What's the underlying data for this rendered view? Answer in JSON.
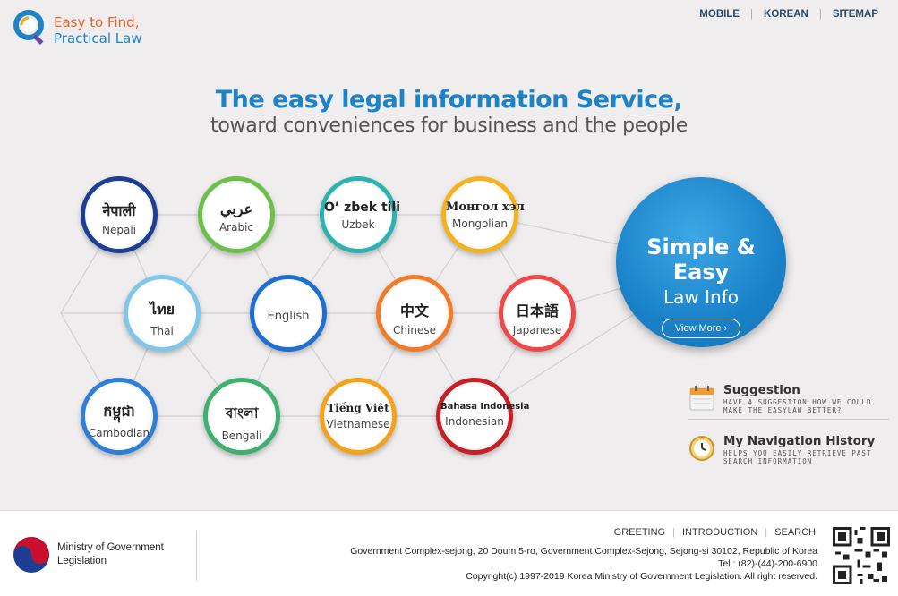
{
  "header": {
    "logo": {
      "line1": "Easy to Find,",
      "line2": "Practical Law"
    },
    "nav": [
      "MOBILE",
      "KOREAN",
      "SITEMAP"
    ]
  },
  "hero": {
    "title": "The  easy legal information Service,",
    "subtitle": "toward conveniences for business and the people"
  },
  "languages": [
    {
      "native": "नेपाली",
      "english": "Nepali",
      "color": "#1c3f95"
    },
    {
      "native": "عربي",
      "english": "Arabic",
      "color": "#6cc04a"
    },
    {
      "native": "O’ zbek  tili",
      "english": "Uzbek",
      "color": "#2bb3b1"
    },
    {
      "native": "Монгол  хэл",
      "english": "Mongolian",
      "color": "#f5b21d"
    },
    {
      "native": "ไทย",
      "english": "Thai",
      "color": "#7fc6ea"
    },
    {
      "native": "",
      "english": "English",
      "color": "#1e6fd0"
    },
    {
      "native": "中文",
      "english": "Chinese",
      "color": "#f07b2a"
    },
    {
      "native": "日本語",
      "english": "Japanese",
      "color": "#ee4848"
    },
    {
      "native": "កម្ពុជា",
      "english": "Cambodian",
      "color": "#2d7fd8"
    },
    {
      "native": "বাংলা",
      "english": "Bengali",
      "color": "#3fb06f"
    },
    {
      "native": "Tiếng Việt",
      "english": "Vietnamese",
      "color": "#f3a21c"
    },
    {
      "native": "Bahasa Indonesia",
      "english": "Indonesian",
      "color": "#c52026"
    }
  ],
  "feature": {
    "line1": "Simple & Easy",
    "line2": "Law Info",
    "button": "View More"
  },
  "side": {
    "suggestion": {
      "title": "Suggestion",
      "desc": "Have a suggestion how we could make the easylaw better?"
    },
    "history": {
      "title": "My Navigation History",
      "desc": "Helps you easily retrieve past search information"
    }
  },
  "footer": {
    "ministry": {
      "line1": "Ministry of Government",
      "line2": "Legislation"
    },
    "links": [
      "GREETING",
      "INTRODUCTION",
      "SEARCH"
    ],
    "address": "Government Complex-sejong, 20 Doum 5-ro, Government Complex-Sejong, Sejong-si 30102, Republic of Korea",
    "tel": "Tel : (82)-(44)-200-6900",
    "copyright": "Copyright(c) 1997-2019 Korea Ministry of Government Legislation. All right reserved."
  }
}
